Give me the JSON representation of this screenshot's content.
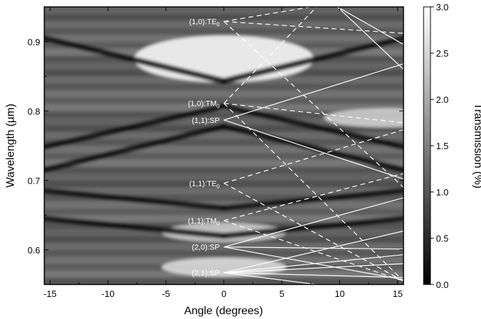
{
  "chart_data": {
    "type": "heatmap",
    "title": "",
    "xlabel": "Angle (degrees)",
    "ylabel": "Wavelength (µm)",
    "xlim": [
      -15.5,
      15.5
    ],
    "ylim": [
      0.55,
      0.95
    ],
    "x_ticks": [
      -15,
      -10,
      -5,
      0,
      5,
      10,
      15
    ],
    "x_tick_labels": [
      "-15",
      "-10",
      "-5",
      "0",
      "5",
      "10",
      "15"
    ],
    "y_ticks": [
      0.6,
      0.7,
      0.8,
      0.9
    ],
    "y_tick_labels": [
      "0.6",
      "0.7",
      "0.8",
      "0.9"
    ],
    "colorbar": {
      "label": "Transmission (%)",
      "range": [
        0.0,
        3.0
      ],
      "ticks": [
        0.0,
        0.5,
        1.0,
        1.5,
        2.0,
        2.5,
        3.0
      ],
      "tick_labels": [
        "0.0",
        "0.5",
        "1.0",
        "1.5",
        "2.0",
        "2.5",
        "3.0"
      ],
      "colormap": "grayscale",
      "low_color": "#000000",
      "high_color": "#ffffff"
    },
    "grid": false,
    "bright_features": [
      {
        "angle": 0,
        "wavelength": 0.875,
        "transmission": 3.0
      },
      {
        "angle": 0,
        "wavelength": 0.625,
        "transmission": 2.2
      },
      {
        "angle": 0,
        "wavelength": 0.575,
        "transmission": 2.4
      },
      {
        "angle": 14,
        "wavelength": 0.79,
        "transmission": 2.2
      }
    ],
    "dark_bands": [
      {
        "from": [
          -15.5,
          0.905
        ],
        "to": [
          0,
          0.843
        ]
      },
      {
        "from": [
          0,
          0.843
        ],
        "to": [
          15.5,
          0.905
        ]
      },
      {
        "from": [
          -15.5,
          0.748
        ],
        "to": [
          0,
          0.807
        ]
      },
      {
        "from": [
          0,
          0.807
        ],
        "to": [
          15.5,
          0.748
        ]
      },
      {
        "from": [
          -15.5,
          0.715
        ],
        "to": [
          0,
          0.778
        ]
      },
      {
        "from": [
          0,
          0.778
        ],
        "to": [
          15.5,
          0.715
        ]
      },
      {
        "from": [
          -15.5,
          0.685
        ],
        "to": [
          0,
          0.66
        ]
      },
      {
        "from": [
          0,
          0.66
        ],
        "to": [
          15.5,
          0.685
        ]
      },
      {
        "from": [
          -15.5,
          0.645
        ],
        "to": [
          0,
          0.62
        ]
      },
      {
        "from": [
          0,
          0.62
        ],
        "to": [
          15.5,
          0.645
        ]
      }
    ],
    "modes": [
      {
        "label": "(1,0):TE",
        "sub": "0",
        "style": "dashed",
        "angle": 0,
        "wavelength": 0.929
      },
      {
        "label": "(1,0):TM",
        "sub": "0",
        "style": "dashed",
        "angle": 0,
        "wavelength": 0.811
      },
      {
        "label": "(1,1):SP",
        "sub": "",
        "style": "solid",
        "angle": 0,
        "wavelength": 0.787
      },
      {
        "label": "(1,1):TE",
        "sub": "0",
        "style": "dashed",
        "angle": 0,
        "wavelength": 0.696
      },
      {
        "label": "(1,1):TM",
        "sub": "0",
        "style": "dashed",
        "angle": 0,
        "wavelength": 0.642
      },
      {
        "label": "(2,0):SP",
        "sub": "",
        "style": "solid",
        "angle": 0,
        "wavelength": 0.604
      },
      {
        "label": "(2,1):SP",
        "sub": "",
        "style": "solid",
        "angle": 0,
        "wavelength": 0.567
      }
    ],
    "mode_lines": [
      {
        "style": "dashed",
        "points": [
          [
            0,
            0.929
          ],
          [
            15.5,
            0.912
          ]
        ]
      },
      {
        "style": "dashed",
        "points": [
          [
            0,
            0.929
          ],
          [
            15.5,
            0.69
          ]
        ]
      },
      {
        "style": "dashed",
        "points": [
          [
            0,
            0.929
          ],
          [
            7.5,
            0.95
          ]
        ]
      },
      {
        "style": "solid",
        "points": [
          [
            9.8,
            0.95
          ],
          [
            15.5,
            0.896
          ]
        ]
      },
      {
        "style": "solid",
        "points": [
          [
            9.8,
            0.95
          ],
          [
            15.5,
            0.86
          ]
        ]
      },
      {
        "style": "dashed",
        "points": [
          [
            0,
            0.811
          ],
          [
            15.5,
            0.783
          ]
        ]
      },
      {
        "style": "dashed",
        "points": [
          [
            0,
            0.811
          ],
          [
            15.5,
            0.555
          ]
        ]
      },
      {
        "style": "dashed",
        "points": [
          [
            0,
            0.811
          ],
          [
            8,
            0.95
          ]
        ]
      },
      {
        "style": "solid",
        "points": [
          [
            0,
            0.787
          ],
          [
            15.5,
            0.868
          ]
        ]
      },
      {
        "style": "solid",
        "points": [
          [
            0,
            0.787
          ],
          [
            15.5,
            0.702
          ]
        ]
      },
      {
        "style": "dashed",
        "points": [
          [
            0,
            0.696
          ],
          [
            15.5,
            0.773
          ]
        ]
      },
      {
        "style": "dashed",
        "points": [
          [
            0,
            0.696
          ],
          [
            15.5,
            0.555
          ]
        ]
      },
      {
        "style": "dashed",
        "points": [
          [
            0,
            0.642
          ],
          [
            15.5,
            0.71
          ]
        ]
      },
      {
        "style": "dashed",
        "points": [
          [
            0,
            0.642
          ],
          [
            15.5,
            0.555
          ]
        ]
      },
      {
        "style": "solid",
        "points": [
          [
            0,
            0.604
          ],
          [
            15.5,
            0.675
          ]
        ]
      },
      {
        "style": "solid",
        "points": [
          [
            0,
            0.604
          ],
          [
            15.5,
            0.601
          ]
        ]
      },
      {
        "style": "solid",
        "points": [
          [
            0,
            0.604
          ],
          [
            15.5,
            0.557
          ]
        ]
      },
      {
        "style": "solid",
        "points": [
          [
            0,
            0.567
          ],
          [
            15.5,
            0.627
          ]
        ]
      },
      {
        "style": "solid",
        "points": [
          [
            0,
            0.567
          ],
          [
            15.5,
            0.593
          ]
        ]
      },
      {
        "style": "solid",
        "points": [
          [
            0,
            0.567
          ],
          [
            15.5,
            0.58
          ]
        ]
      },
      {
        "style": "solid",
        "points": [
          [
            0,
            0.567
          ],
          [
            15.5,
            0.56
          ]
        ]
      },
      {
        "style": "solid",
        "points": [
          [
            0,
            0.567
          ],
          [
            8,
            0.55
          ]
        ]
      }
    ],
    "colors": {
      "axis": "#000000",
      "mode_line": "#ffffff",
      "background": "#ffffff"
    }
  }
}
